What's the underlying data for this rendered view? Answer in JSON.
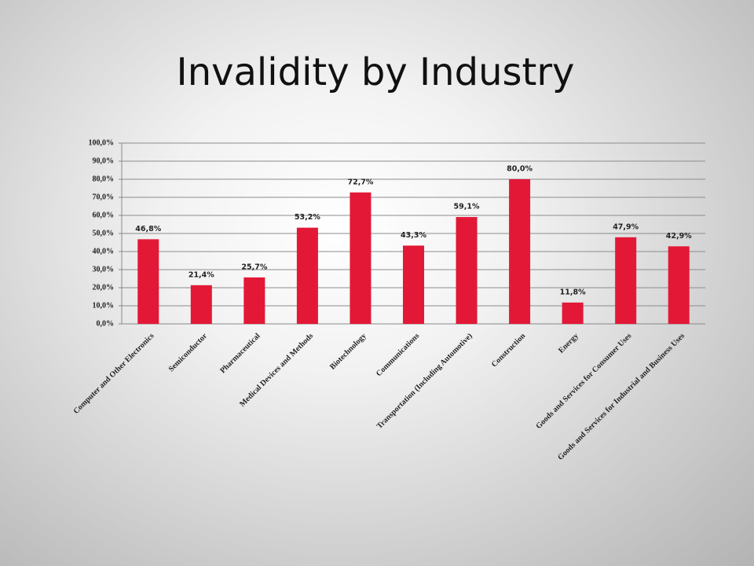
{
  "chart_data": {
    "type": "bar",
    "title": "Invalidity by Industry",
    "categories": [
      "Computer and Other Electronics",
      "Semiconductor",
      "Pharmaceutical",
      "Medical Devices and Methods",
      "Biotechnology",
      "Communications",
      "Transportation (Including Automotive)",
      "Construction",
      "Energy",
      "Goods and Services for Consumer Uses",
      "Goods and Services for Industrial and Business Uses"
    ],
    "values": [
      46.8,
      21.4,
      25.7,
      53.2,
      72.7,
      43.3,
      59.1,
      80.0,
      11.8,
      47.9,
      42.9
    ],
    "value_labels": [
      "46,8%",
      "21,4%",
      "25,7%",
      "53,2%",
      "72,7%",
      "43,3%",
      "59,1%",
      "80,0%",
      "11,8%",
      "47,9%",
      "42,9%"
    ],
    "color": "#e31837",
    "ylim": [
      0,
      100
    ],
    "yticks": [
      {
        "value": 0,
        "label": "0,0%"
      },
      {
        "value": 10,
        "label": "10,0%"
      },
      {
        "value": 20,
        "label": "20,0%"
      },
      {
        "value": 30,
        "label": "30,0%"
      },
      {
        "value": 40,
        "label": "40,0%"
      },
      {
        "value": 50,
        "label": "50,0%"
      },
      {
        "value": 60,
        "label": "60,0%"
      },
      {
        "value": 70,
        "label": "70,0%"
      },
      {
        "value": 80,
        "label": "80,0%"
      },
      {
        "value": 90,
        "label": "90,0%"
      },
      {
        "value": 100,
        "label": "100,0%"
      }
    ],
    "grid": true
  }
}
